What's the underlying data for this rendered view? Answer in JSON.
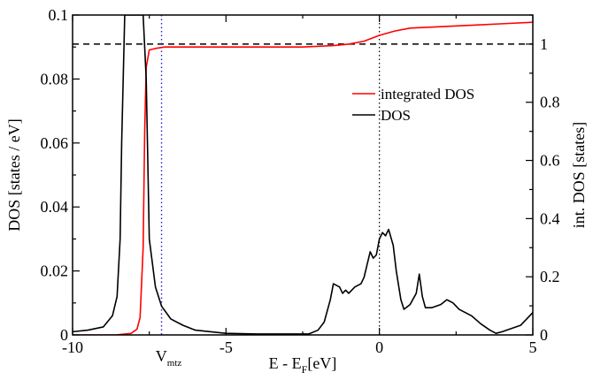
{
  "chart_data": {
    "type": "line",
    "xlabel": {
      "main": "E - E",
      "sub": "F",
      "unit": "[eV]"
    },
    "ylabel": "DOS [states / eV]",
    "y2label": "int. DOS [states]",
    "xlim": [
      -10,
      5
    ],
    "ylim": [
      0,
      0.1
    ],
    "y2lim": [
      0,
      1.1
    ],
    "x_ticks": [
      "-10",
      "-5",
      "0",
      "5"
    ],
    "y_ticks": [
      "0",
      "0.02",
      "0.04",
      "0.06",
      "0.08",
      "0.1"
    ],
    "y2_ticks": [
      "0",
      "0.2",
      "0.4",
      "0.6",
      "0.8",
      "1"
    ],
    "vmtz_label": {
      "main": "V",
      "sub": "mtz"
    },
    "vmtz_x": -7.1,
    "fermi_x": 0,
    "ref_line_y2": 1.0,
    "legend_position": "right-middle",
    "series": [
      {
        "name": "integrated DOS",
        "axis": "right",
        "color": "#ff0000",
        "x": [
          -10,
          -8.6,
          -8.1,
          -7.9,
          -7.8,
          -7.7,
          -7.65,
          -7.6,
          -7.5,
          -7.3,
          -7.0,
          -5,
          -2.5,
          -1.5,
          -1.0,
          -0.5,
          0,
          0.5,
          1.0,
          2.0,
          3.0,
          4.0,
          5.0
        ],
        "y": [
          0,
          0,
          0.005,
          0.02,
          0.06,
          0.3,
          0.7,
          0.92,
          0.98,
          0.985,
          0.99,
          0.99,
          0.99,
          0.995,
          1.0,
          1.01,
          1.03,
          1.045,
          1.055,
          1.06,
          1.065,
          1.07,
          1.075
        ]
      },
      {
        "name": "DOS",
        "axis": "left",
        "color": "#000000",
        "x": [
          -10,
          -9.5,
          -9.0,
          -8.7,
          -8.55,
          -8.45,
          -8.4,
          -8.3,
          -8.1,
          -7.9,
          -7.8,
          -7.75,
          -7.7,
          -7.6,
          -7.5,
          -7.3,
          -7.1,
          -6.8,
          -6.4,
          -6.0,
          -5.0,
          -4.0,
          -3.0,
          -2.3,
          -2.0,
          -1.8,
          -1.6,
          -1.5,
          -1.3,
          -1.2,
          -1.1,
          -1.0,
          -0.9,
          -0.8,
          -0.6,
          -0.5,
          -0.4,
          -0.3,
          -0.2,
          -0.1,
          0,
          0.1,
          0.2,
          0.3,
          0.45,
          0.55,
          0.7,
          0.8,
          1.0,
          1.2,
          1.3,
          1.4,
          1.5,
          1.7,
          2.0,
          2.2,
          2.4,
          2.6,
          2.8,
          3.0,
          3.3,
          3.6,
          3.8,
          4.0,
          4.3,
          4.6,
          4.8,
          5.0
        ],
        "y": [
          0.001,
          0.0015,
          0.0025,
          0.006,
          0.012,
          0.03,
          0.06,
          0.1,
          0.1,
          0.1,
          0.1,
          0.1,
          0.1,
          0.08,
          0.03,
          0.015,
          0.009,
          0.005,
          0.003,
          0.0015,
          0.0005,
          0.0003,
          0.0003,
          0.0003,
          0.0015,
          0.004,
          0.011,
          0.016,
          0.015,
          0.013,
          0.014,
          0.013,
          0.014,
          0.015,
          0.016,
          0.018,
          0.022,
          0.026,
          0.024,
          0.025,
          0.03,
          0.032,
          0.031,
          0.033,
          0.028,
          0.02,
          0.011,
          0.008,
          0.0095,
          0.013,
          0.019,
          0.012,
          0.0085,
          0.0085,
          0.0095,
          0.011,
          0.01,
          0.008,
          0.007,
          0.006,
          0.0035,
          0.0015,
          0.0005,
          0.001,
          0.002,
          0.003,
          0.005,
          0.007
        ]
      }
    ]
  }
}
